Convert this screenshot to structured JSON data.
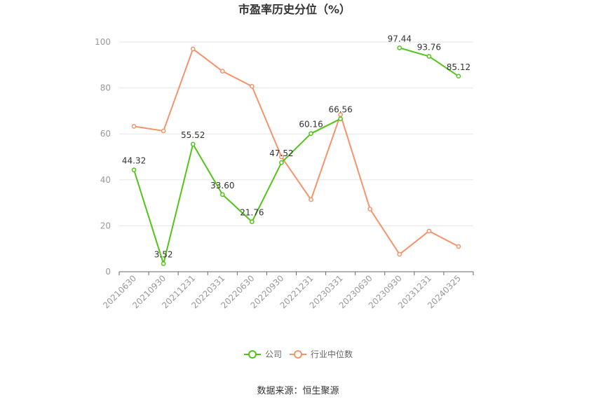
{
  "chart_data": {
    "type": "line",
    "title": "市盈率历史分位（%）",
    "categories": [
      "20210630",
      "20210930",
      "20211231",
      "20220331",
      "20220630",
      "20220930",
      "20221231",
      "20230331",
      "20230630",
      "20230930",
      "20231231",
      "20240325"
    ],
    "ylim": [
      0,
      100
    ],
    "yticks": [
      "0",
      "20",
      "40",
      "60",
      "80",
      "100"
    ],
    "grid": true,
    "legend_position": "bottom-center",
    "series": [
      {
        "name": "公司",
        "color": "#52c41a",
        "values": [
          44.32,
          3.52,
          55.52,
          33.6,
          21.76,
          47.52,
          60.16,
          66.56,
          null,
          97.44,
          93.76,
          85.12
        ],
        "labels": [
          "44.32",
          "3.52",
          "55.52",
          "33.60",
          "21.76",
          "47.52",
          "60.16",
          "66.56",
          "",
          "97.44",
          "93.76",
          "85.12"
        ]
      },
      {
        "name": "行业中位数",
        "color": "#f5936c",
        "values": [
          63.3,
          61.3,
          97.0,
          87.3,
          80.7,
          50.0,
          31.4,
          68.4,
          27.3,
          7.6,
          17.7,
          11.0
        ]
      }
    ]
  },
  "source": "数据来源：恒生聚源"
}
